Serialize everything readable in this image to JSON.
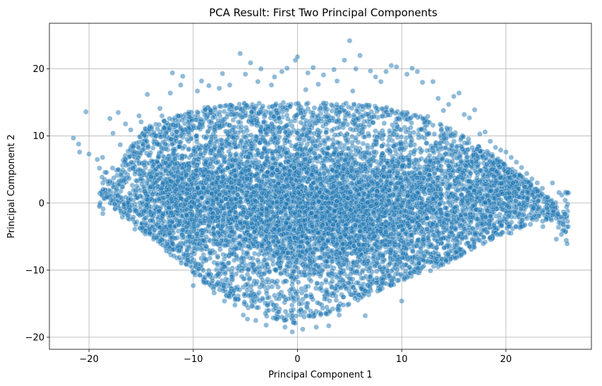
{
  "chart_data": {
    "type": "scatter",
    "title": "PCA Result: First Two Principal Components",
    "xlabel": "Principal Component 1",
    "ylabel": "Principal Component 2",
    "xlim": [
      -23.8,
      28.2
    ],
    "ylim": [
      -21.8,
      26.8
    ],
    "x_ticks": [
      -20,
      -10,
      0,
      10,
      20
    ],
    "x_tick_labels": [
      "−20",
      "−10",
      "0",
      "10",
      "20"
    ],
    "y_ticks": [
      -20,
      -10,
      0,
      10,
      20
    ],
    "y_tick_labels": [
      "−20",
      "−10",
      "0",
      "10",
      "20"
    ],
    "grid": true,
    "legend": "none",
    "series": [
      {
        "color": "#1f77b4",
        "alpha": 0.5,
        "x": [
          -21.5,
          -21,
          -20.9,
          -20.3,
          -20,
          -19.2,
          -19,
          -18.7,
          -18.5,
          -18.2,
          -18,
          -17.7,
          -17.5,
          -17.2,
          -17,
          -16.8,
          -16.5,
          -16.3,
          -16,
          -15.6,
          -15.2,
          -15,
          -14.6,
          -14.4,
          -14,
          -13.5,
          -13.2,
          -13,
          -12.5,
          -12.2,
          -12,
          -11.5,
          -11.2,
          -11,
          -10.5,
          -10,
          -9.6,
          -9.2,
          -9,
          -8.5,
          -8,
          -7.5,
          -7.2,
          -7,
          -6.5,
          -6,
          -5.5,
          -5.2,
          -5,
          -4.8,
          -4.5,
          -4,
          -3.8,
          -3.5,
          -3,
          -2.5,
          -2.2,
          -2,
          -1.5,
          -1.2,
          -1,
          -0.5,
          -0.2,
          0,
          0.5,
          0.8,
          1,
          1.5,
          1.8,
          2,
          2.5,
          3,
          3.5,
          3.8,
          4,
          4.5,
          5,
          5.3,
          5.6,
          6,
          6.5,
          7,
          7.5,
          8,
          8.5,
          9,
          9.5,
          10,
          10.5,
          11,
          11.5,
          12,
          12.5,
          13,
          13.5,
          14,
          14.5,
          15,
          15.5,
          16,
          16.5,
          17,
          17.5,
          18,
          18.5,
          19,
          19.5,
          20,
          20.5,
          21,
          21.5,
          22,
          22.5,
          23,
          23.5,
          24,
          24.5,
          25,
          25.5
        ],
        "y": [
          9.7,
          8.8,
          7.6,
          13.6,
          7.3,
          6.5,
          5.2,
          6.8,
          3.5,
          3.2,
          12.6,
          10.4,
          -0.2,
          13.5,
          8.7,
          -2.1,
          11.8,
          -1.8,
          10.9,
          -3.9,
          13.0,
          12.1,
          -4.6,
          16.2,
          11.3,
          -5.2,
          14.1,
          13.0,
          -6.1,
          16.4,
          19.4,
          -6.4,
          17.6,
          18.9,
          -7.7,
          -12.3,
          16.7,
          18.2,
          -11.8,
          17.5,
          -13.4,
          17.1,
          19.3,
          -14.6,
          17.6,
          -15.2,
          22.3,
          -16.7,
          19.2,
          -17.3,
          20.9,
          -17.5,
          18.1,
          20.0,
          -18.2,
          17.6,
          18.8,
          -17.3,
          19.6,
          -18.5,
          20.1,
          -19.2,
          21.3,
          21.8,
          -18.8,
          16.9,
          19.4,
          20.2,
          -18.5,
          17.7,
          19.1,
          -18.3,
          19.9,
          18.2,
          -16.7,
          21.3,
          24.2,
          16.7,
          20.0,
          22.0,
          -16.8,
          19.7,
          18.8,
          18.1,
          19.6,
          20.5,
          20.3,
          -14.6,
          19.2,
          20.1,
          19.6,
          18.0,
          12.9,
          18.1,
          15.6,
          13.8,
          14.7,
          15.9,
          16.4,
          13.2,
          12.7,
          13.9,
          10.3,
          10.6,
          9.2,
          8.3,
          7.9,
          7.6,
          6.8,
          6.1,
          5.3,
          4.4,
          3.6,
          3.0,
          2.2,
          0.9,
          -0.7,
          -1.7,
          -2.8
        ],
        "cloud": [
          {
            "cx": -3,
            "cy": 1,
            "sx": 6.5,
            "sy": 6.5,
            "n": 3200
          },
          {
            "cx": 5,
            "cy": -3,
            "sx": 5.5,
            "sy": 5.5,
            "n": 2200
          },
          {
            "cx": 13,
            "cy": 1,
            "sx": 4.2,
            "sy": 4.8,
            "n": 1100
          },
          {
            "cx": -11,
            "cy": 2,
            "sx": 3.2,
            "sy": 5,
            "n": 900
          },
          {
            "cx": 20,
            "cy": 2,
            "sx": 2.4,
            "sy": 3,
            "n": 450
          }
        ],
        "hull_top": [
          [
            -19,
            1
          ],
          [
            -15,
            11
          ],
          [
            -10,
            14
          ],
          [
            -5,
            15
          ],
          [
            0,
            15
          ],
          [
            5,
            15
          ],
          [
            10,
            14
          ],
          [
            15,
            11
          ],
          [
            19,
            7
          ],
          [
            24,
            1
          ],
          [
            26,
            -2
          ]
        ],
        "hull_bottom": [
          [
            -19,
            1
          ],
          [
            -15,
            -4
          ],
          [
            -12,
            -8
          ],
          [
            -8,
            -13
          ],
          [
            -3,
            -17
          ],
          [
            0,
            -18
          ],
          [
            4,
            -16
          ],
          [
            8,
            -13
          ],
          [
            13,
            -10
          ],
          [
            18,
            -6
          ],
          [
            23,
            -3
          ],
          [
            26,
            -2
          ]
        ]
      }
    ]
  }
}
